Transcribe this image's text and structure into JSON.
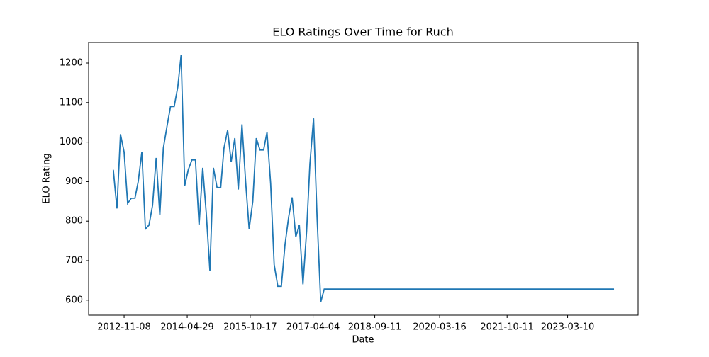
{
  "chart_data": {
    "type": "line",
    "title": "ELO Ratings Over Time for Ruch",
    "x_label": "Date",
    "y_label": "ELO Rating",
    "x": [
      "2012-08-08",
      "2012-09-08",
      "2012-10-08",
      "2012-11-08",
      "2012-12-08",
      "2013-01-08",
      "2013-02-08",
      "2013-03-08",
      "2013-04-08",
      "2013-05-08",
      "2013-06-08",
      "2013-07-08",
      "2013-08-08",
      "2013-09-08",
      "2013-10-08",
      "2013-11-08",
      "2013-12-08",
      "2014-01-08",
      "2014-02-08",
      "2014-03-08",
      "2014-04-08",
      "2014-05-08",
      "2014-06-08",
      "2014-07-08",
      "2014-08-08",
      "2014-09-08",
      "2014-10-08",
      "2014-11-08",
      "2014-12-08",
      "2015-01-08",
      "2015-02-08",
      "2015-03-08",
      "2015-04-08",
      "2015-05-08",
      "2015-06-08",
      "2015-07-08",
      "2015-08-08",
      "2015-09-08",
      "2015-10-08",
      "2015-11-08",
      "2015-12-08",
      "2016-01-08",
      "2016-02-08",
      "2016-03-08",
      "2016-04-08",
      "2016-05-08",
      "2016-06-08",
      "2016-07-08",
      "2016-08-08",
      "2016-09-08",
      "2016-10-08",
      "2016-11-08",
      "2016-12-08",
      "2017-01-08",
      "2017-02-08",
      "2017-03-08",
      "2017-04-08",
      "2017-05-08",
      "2017-06-08",
      "2017-07-08",
      "2024-04-08"
    ],
    "series": [
      {
        "name": "Ruch",
        "color": "#1f77b4",
        "values": [
          930,
          832,
          1020,
          975,
          845,
          858,
          858,
          900,
          975,
          780,
          790,
          840,
          960,
          815,
          985,
          1040,
          1090,
          1090,
          1140,
          1220,
          890,
          930,
          955,
          955,
          790,
          935,
          820,
          675,
          935,
          885,
          885,
          985,
          1030,
          950,
          1010,
          880,
          1045,
          900,
          780,
          850,
          1010,
          980,
          980,
          1025,
          895,
          690,
          635,
          635,
          740,
          810,
          860,
          760,
          790,
          640,
          775,
          945,
          1060,
          810,
          595,
          628,
          628
        ]
      }
    ],
    "xlim": [
      "2012-01-11",
      "2024-10-30"
    ],
    "xticks": [
      "2012-11-08",
      "2014-04-29",
      "2015-10-17",
      "2017-04-04",
      "2018-09-11",
      "2020-03-16",
      "2021-10-11",
      "2023-03-10"
    ],
    "ylim": [
      562,
      1252
    ],
    "yticks": [
      600,
      700,
      800,
      900,
      1000,
      1100,
      1200
    ]
  }
}
